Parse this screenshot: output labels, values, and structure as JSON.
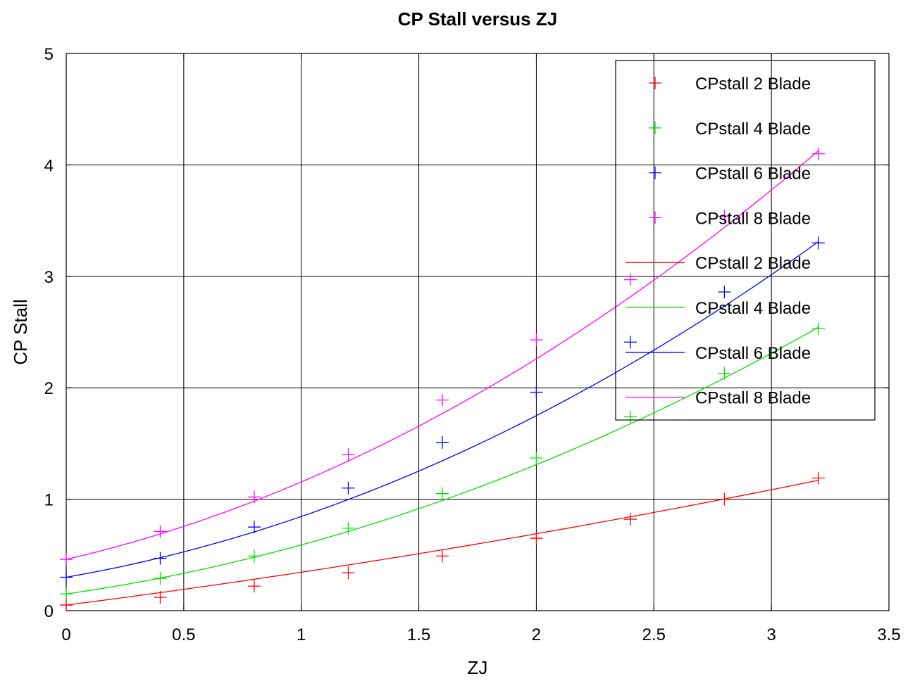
{
  "chart_data": {
    "type": "line",
    "title": "CP Stall versus ZJ",
    "xlabel": "ZJ",
    "ylabel": "CP Stall",
    "xlim": [
      0,
      3.5
    ],
    "ylim": [
      0,
      5
    ],
    "xticks": [
      "0",
      "0.5",
      "1",
      "1.5",
      "2",
      "2.5",
      "3",
      "3.5"
    ],
    "yticks": [
      "0",
      "1",
      "2",
      "3",
      "4",
      "5"
    ],
    "grid": true,
    "legend_position": "top-right",
    "x": [
      0,
      0.4,
      0.8,
      1.2,
      1.6,
      2.0,
      2.4,
      2.8,
      3.2
    ],
    "point_series": [
      {
        "name": "CPstall 2 Blade",
        "color": "#ff0000",
        "marker": "plus",
        "values": [
          0.05,
          0.12,
          0.22,
          0.34,
          0.49,
          0.65,
          0.82,
          1.0,
          1.19
        ]
      },
      {
        "name": "CPstall 4 Blade",
        "color": "#00e000",
        "marker": "plus",
        "values": [
          0.15,
          0.29,
          0.49,
          0.74,
          1.05,
          1.37,
          1.74,
          2.13,
          2.53
        ]
      },
      {
        "name": "CPstall 6 Blade",
        "color": "#0000ff",
        "marker": "plus",
        "values": [
          0.3,
          0.47,
          0.75,
          1.1,
          1.51,
          1.96,
          2.41,
          2.86,
          3.3
        ]
      },
      {
        "name": "CPstall 8 Blade",
        "color": "#ff00ff",
        "marker": "plus",
        "values": [
          0.46,
          0.71,
          1.02,
          1.4,
          1.89,
          2.43,
          2.97,
          3.54,
          4.1
        ]
      }
    ],
    "line_series": [
      {
        "name": "CPstall 2 Blade",
        "color": "#ff0000",
        "coefficients": [
          0.05,
          0.27,
          0.025
        ]
      },
      {
        "name": "CPstall 4 Blade",
        "color": "#00e000",
        "coefficients": [
          0.15,
          0.3,
          0.14
        ]
      },
      {
        "name": "CPstall 6 Blade",
        "color": "#0000ff",
        "coefficients": [
          0.3,
          0.365,
          0.18
        ]
      },
      {
        "name": "CPstall 8 Blade",
        "color": "#ff00ff",
        "coefficients": [
          0.46,
          0.49,
          0.205
        ]
      }
    ]
  }
}
